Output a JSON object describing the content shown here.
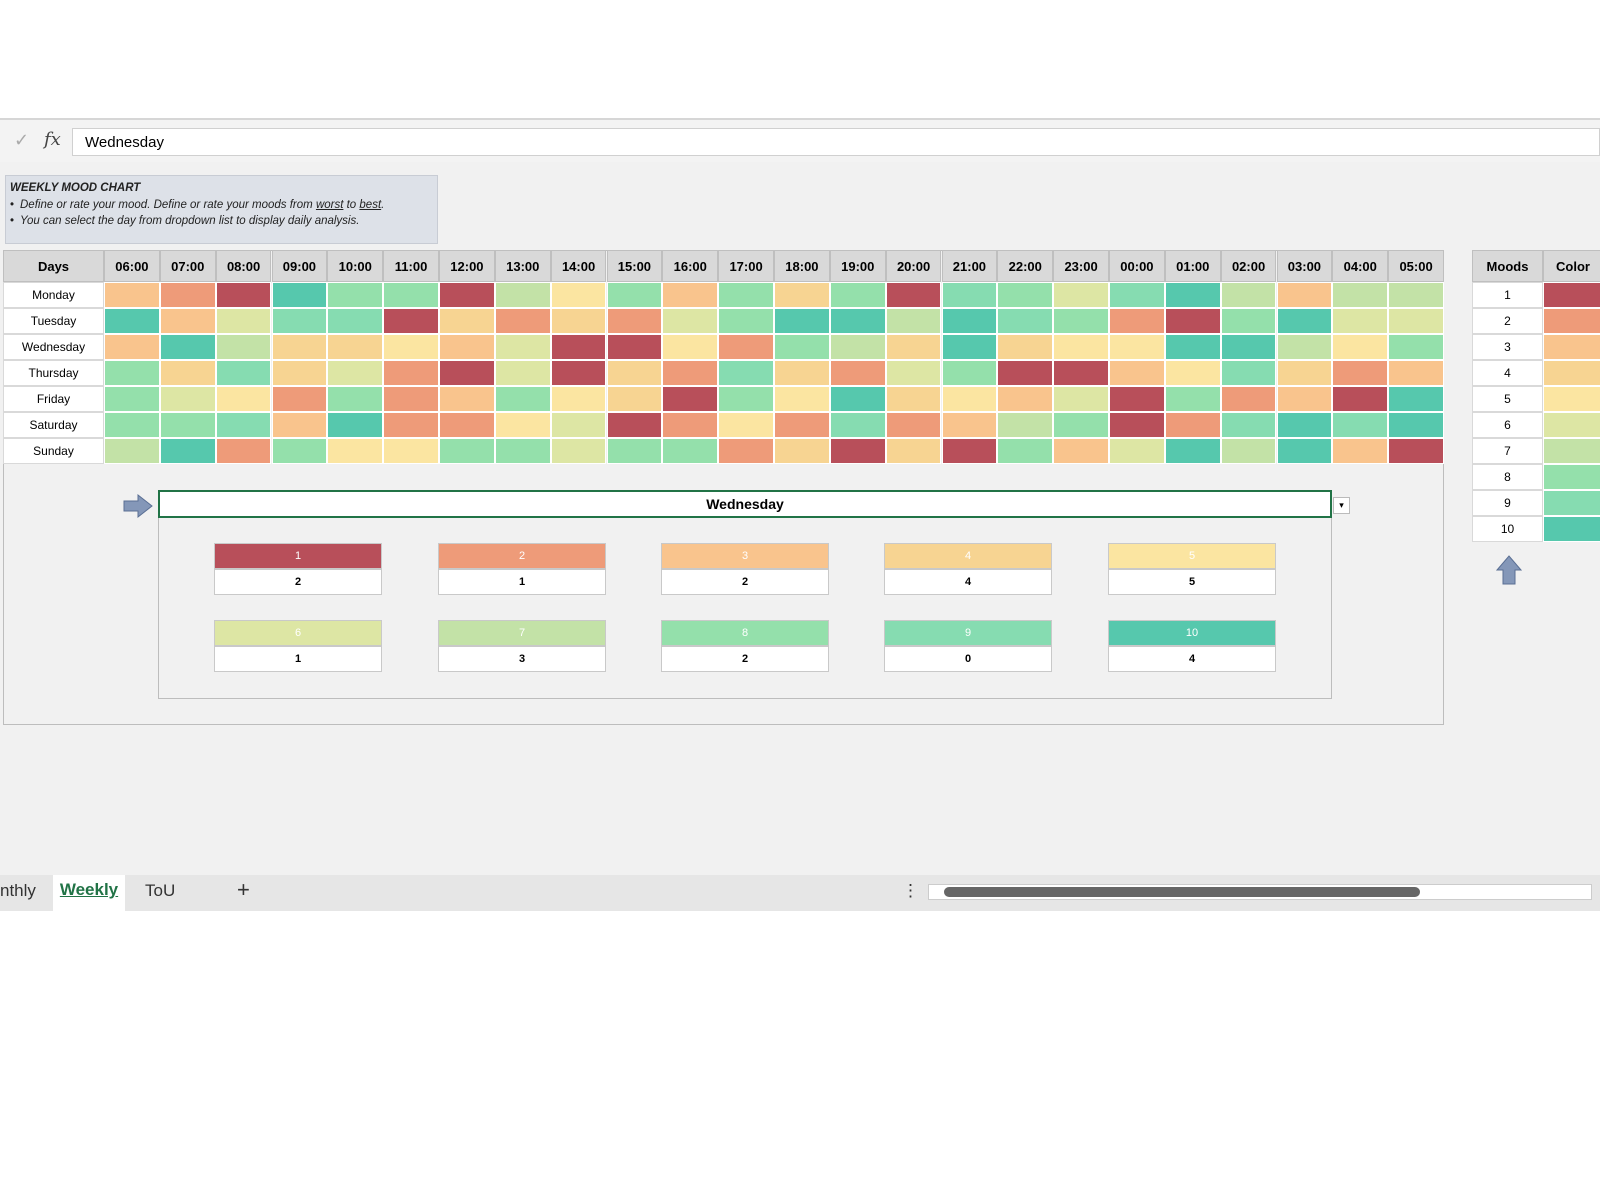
{
  "formula_bar": {
    "value": "Wednesday"
  },
  "info": {
    "title": "WEEKLY MOOD CHART",
    "notes": [
      [
        "Define or rate your mood. Define or rate your moods from ",
        "worst",
        " to ",
        "best",
        "."
      ],
      [
        "You can select the day from dropdown list to display daily analysis."
      ]
    ]
  },
  "table": {
    "corner": "Days",
    "hours": [
      "06:00",
      "07:00",
      "08:00",
      "09:00",
      "10:00",
      "11:00",
      "12:00",
      "13:00",
      "14:00",
      "15:00",
      "16:00",
      "17:00",
      "18:00",
      "19:00",
      "20:00",
      "21:00",
      "22:00",
      "23:00",
      "00:00",
      "01:00",
      "02:00",
      "03:00",
      "04:00",
      "05:00"
    ],
    "days": [
      "Monday",
      "Tuesday",
      "Wednesday",
      "Thursday",
      "Friday",
      "Saturday",
      "Sunday"
    ],
    "moods": [
      [
        3,
        2,
        1,
        10,
        8,
        8,
        1,
        7,
        5,
        8,
        3,
        8,
        4,
        8,
        1,
        9,
        8,
        6,
        9,
        10,
        7,
        3,
        7,
        7
      ],
      [
        10,
        3,
        6,
        9,
        9,
        1,
        4,
        2,
        4,
        2,
        6,
        8,
        10,
        10,
        7,
        10,
        9,
        8,
        2,
        1,
        8,
        10,
        6,
        6
      ],
      [
        3,
        10,
        7,
        4,
        4,
        5,
        3,
        6,
        1,
        1,
        5,
        2,
        8,
        7,
        4,
        10,
        4,
        5,
        5,
        10,
        10,
        7,
        5,
        8
      ],
      [
        8,
        4,
        9,
        4,
        6,
        2,
        1,
        6,
        1,
        4,
        2,
        9,
        4,
        2,
        6,
        8,
        1,
        1,
        3,
        5,
        9,
        4,
        2,
        3
      ],
      [
        8,
        6,
        5,
        2,
        8,
        2,
        3,
        8,
        5,
        4,
        1,
        8,
        5,
        10,
        4,
        5,
        3,
        6,
        1,
        8,
        2,
        3,
        1,
        10
      ],
      [
        8,
        8,
        9,
        3,
        10,
        2,
        2,
        5,
        6,
        1,
        2,
        5,
        2,
        9,
        2,
        3,
        7,
        8,
        1,
        2,
        9,
        10,
        9,
        10
      ],
      [
        7,
        10,
        2,
        8,
        5,
        5,
        8,
        8,
        6,
        8,
        8,
        2,
        4,
        1,
        4,
        1,
        8,
        3,
        6,
        10,
        7,
        10,
        3,
        1
      ]
    ]
  },
  "summary": {
    "selected_day": "Wednesday",
    "counts": [
      2,
      1,
      2,
      4,
      5,
      1,
      3,
      2,
      0,
      4
    ]
  },
  "legend": {
    "headers": [
      "Moods",
      "Color"
    ],
    "moods": [
      {
        "mood": 1,
        "color": "#b84f5a"
      },
      {
        "mood": 2,
        "color": "#ee9b79"
      },
      {
        "mood": 3,
        "color": "#f9c48d"
      },
      {
        "mood": 4,
        "color": "#f7d492"
      },
      {
        "mood": 5,
        "color": "#fbe5a1"
      },
      {
        "mood": 6,
        "color": "#dde6a4"
      },
      {
        "mood": 7,
        "color": "#c3e2a7"
      },
      {
        "mood": 8,
        "color": "#94e0ab"
      },
      {
        "mood": 9,
        "color": "#86dcb1"
      },
      {
        "mood": 10,
        "color": "#56c8ad"
      }
    ]
  },
  "tabs": [
    "nthly",
    "Weekly",
    "ToU"
  ]
}
